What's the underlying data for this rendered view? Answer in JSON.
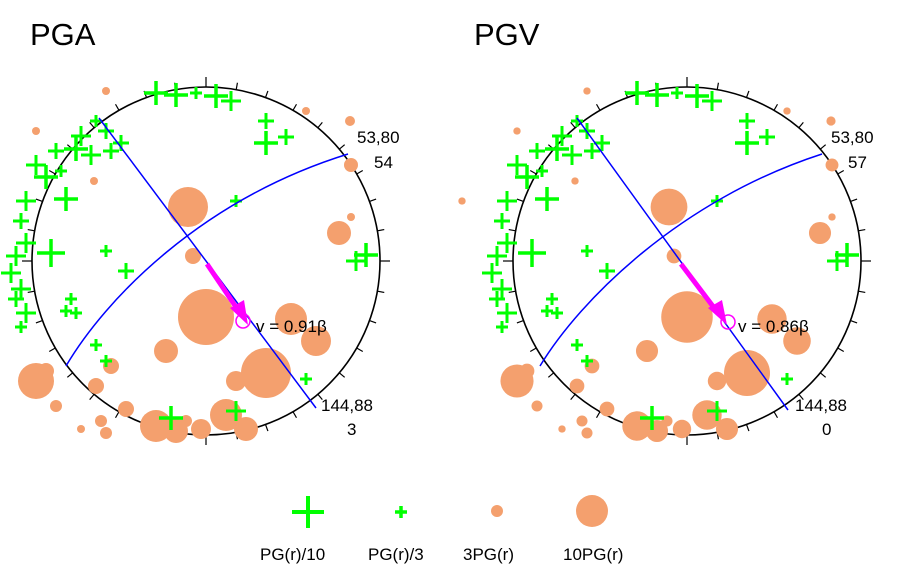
{
  "colors": {
    "plus": "#00ff00",
    "dot": "#f4a06e",
    "plane": "#0000ff",
    "arrow": "#ff00ff",
    "ring": "#000000"
  },
  "panels": [
    {
      "title": "PGA",
      "plane_a": "53,80",
      "plane_a_value": "54",
      "plane_b": "144,88",
      "plane_b_value": "3",
      "velocity_label": "v = 0.91β"
    },
    {
      "title": "PGV",
      "plane_a": "53,80",
      "plane_a_value": "57",
      "plane_b": "144,88",
      "plane_b_value": "0",
      "velocity_label": "v = 0.86β"
    }
  ],
  "legend": [
    {
      "label": "PG(r)/10",
      "icon": "large-plus-icon"
    },
    {
      "label": "PG(r)/3",
      "icon": "small-plus-icon"
    },
    {
      "label": "3PG(r)",
      "icon": "small-dot-icon"
    },
    {
      "label": "10PG(r)",
      "icon": "large-dot-icon"
    }
  ]
}
